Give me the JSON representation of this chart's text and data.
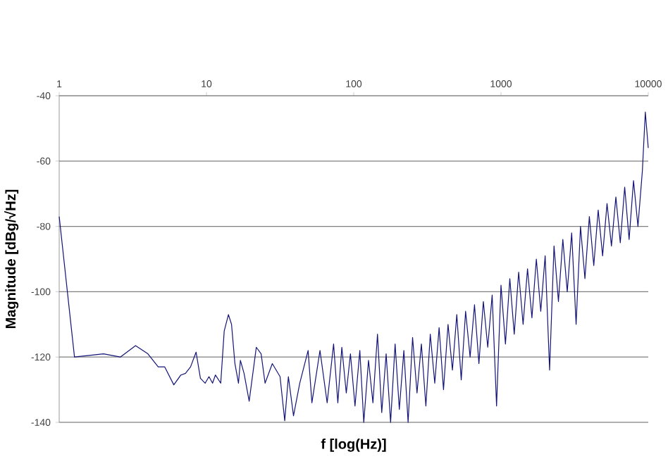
{
  "chart_data": {
    "type": "line",
    "xlabel": "f [log(Hz)]",
    "ylabel": "Magnitude [dBg/√Hz]",
    "log": "x",
    "grid": "y",
    "xlim": [
      1,
      10000
    ],
    "ylim": [
      -140,
      -40
    ],
    "xticks": [
      1,
      10,
      100,
      1000,
      10000
    ],
    "yticks": [
      -140,
      -120,
      -100,
      -80,
      -60,
      -40
    ],
    "series": [
      {
        "color": "#141478",
        "x": [
          1,
          1.27,
          2.0,
          2.6,
          3.3,
          4,
          4.7,
          5.2,
          6,
          6.7,
          7.2,
          7.8,
          8.5,
          9.1,
          9.8,
          10.4,
          11,
          11.5,
          12.5,
          13.2,
          14.1,
          14.8,
          15.6,
          16.5,
          17,
          18,
          19.5,
          21.8,
          23.5,
          25,
          28,
          31.6,
          34,
          36,
          39,
          43,
          49,
          52,
          59,
          66,
          73,
          78,
          83,
          89,
          95,
          102,
          110,
          117,
          126,
          135,
          145,
          155,
          166,
          178,
          191,
          204,
          219,
          234,
          251,
          269,
          288,
          309,
          331,
          355,
          380,
          407,
          437,
          468,
          501,
          537,
          575,
          617,
          661,
          708,
          759,
          813,
          871,
          933,
          1000,
          1072,
          1148,
          1230,
          1318,
          1413,
          1514,
          1622,
          1738,
          1862,
          1995,
          2138,
          2291,
          2455,
          2630,
          2818,
          3020,
          3236,
          3467,
          3715,
          3981,
          4266,
          4571,
          4898,
          5248,
          5623,
          6026,
          6457,
          6918,
          7413,
          7943,
          8511,
          9120,
          9550,
          10000
        ],
        "values": [
          -77,
          -120,
          -119,
          -120,
          -116.5,
          -119,
          -123,
          -123,
          -128.5,
          -125.5,
          -125,
          -123,
          -118.5,
          -126.5,
          -128,
          -126,
          -128,
          -125.5,
          -128,
          -112,
          -107,
          -110,
          -122,
          -128,
          -121,
          -125,
          -133.5,
          -117,
          -119,
          -128,
          -122,
          -126,
          -139.5,
          -126,
          -138,
          -128,
          -118,
          -134,
          -118,
          -134,
          -116,
          -134,
          -117,
          -131,
          -119,
          -135,
          -118,
          -140,
          -121,
          -134,
          -113,
          -137,
          -119,
          -140,
          -116,
          -136,
          -118,
          -140,
          -114,
          -131,
          -116,
          -135,
          -113,
          -128,
          -111,
          -130,
          -110,
          -124,
          -107,
          -127,
          -106,
          -120,
          -104,
          -122,
          -103,
          -117,
          -101,
          -135,
          -98,
          -116,
          -96,
          -113,
          -94,
          -110,
          -93,
          -108,
          -90,
          -106,
          -89,
          -124,
          -86,
          -103,
          -84,
          -100,
          -82,
          -110,
          -80,
          -96,
          -77,
          -92,
          -75,
          -89,
          -73,
          -86,
          -71,
          -85,
          -68,
          -84,
          -66,
          -80,
          -63,
          -45,
          -56
        ]
      }
    ]
  }
}
